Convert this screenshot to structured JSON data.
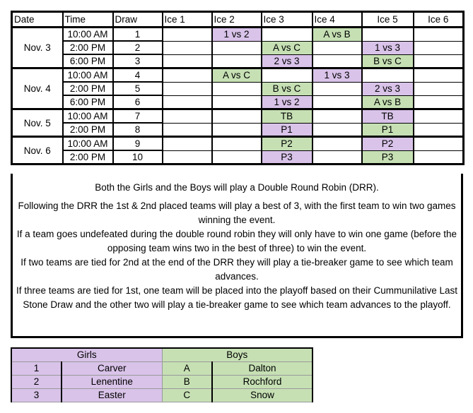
{
  "colors": {
    "girls": "#d9c3e9",
    "boys": "#c6e0b4"
  },
  "schedule": {
    "headers": [
      "Date",
      "Time",
      "Draw",
      "Ice 1",
      "Ice 2",
      "Ice 3",
      "Ice 4",
      "Ice 5",
      "Ice 6"
    ],
    "groups": [
      {
        "date": "Nov. 3",
        "rows": [
          {
            "time": "10:00 AM",
            "draw": "1",
            "ice": [
              [
                "",
                ""
              ],
              [
                "1 vs 2",
                "pur"
              ],
              [
                "",
                ""
              ],
              [
                "A vs B",
                "grn"
              ],
              [
                "",
                ""
              ],
              [
                "",
                ""
              ]
            ]
          },
          {
            "time": "2:00 PM",
            "draw": "2",
            "ice": [
              [
                "",
                ""
              ],
              [
                "",
                ""
              ],
              [
                "A vs C",
                "grn"
              ],
              [
                "",
                ""
              ],
              [
                "1 vs 3",
                "pur"
              ],
              [
                "",
                ""
              ]
            ]
          },
          {
            "time": "6:00 PM",
            "draw": "3",
            "ice": [
              [
                "",
                ""
              ],
              [
                "",
                ""
              ],
              [
                "2 vs 3",
                "pur"
              ],
              [
                "",
                ""
              ],
              [
                "B vs C",
                "grn"
              ],
              [
                "",
                ""
              ]
            ]
          }
        ]
      },
      {
        "date": "Nov. 4",
        "rows": [
          {
            "time": "10:00 AM",
            "draw": "4",
            "ice": [
              [
                "",
                ""
              ],
              [
                "A vs C",
                "grn"
              ],
              [
                "",
                ""
              ],
              [
                "1 vs  3",
                "pur"
              ],
              [
                "",
                ""
              ],
              [
                "",
                ""
              ]
            ]
          },
          {
            "time": "2:00 PM",
            "draw": "5",
            "ice": [
              [
                "",
                ""
              ],
              [
                "",
                ""
              ],
              [
                "B vs C",
                "grn"
              ],
              [
                "",
                ""
              ],
              [
                "2 vs 3",
                "pur"
              ],
              [
                "",
                ""
              ]
            ]
          },
          {
            "time": "6:00 PM",
            "draw": "6",
            "ice": [
              [
                "",
                ""
              ],
              [
                "",
                ""
              ],
              [
                "1 vs 2",
                "pur"
              ],
              [
                "",
                ""
              ],
              [
                "A vs B",
                "grn"
              ],
              [
                "",
                ""
              ]
            ]
          }
        ]
      },
      {
        "date": "Nov. 5",
        "rows": [
          {
            "time": "10:00 AM",
            "draw": "7",
            "ice": [
              [
                "",
                ""
              ],
              [
                "",
                ""
              ],
              [
                "TB",
                "grn"
              ],
              [
                "",
                ""
              ],
              [
                "TB",
                "pur"
              ],
              [
                "",
                ""
              ]
            ]
          },
          {
            "time": "2:00 PM",
            "draw": "8",
            "ice": [
              [
                "",
                ""
              ],
              [
                "",
                ""
              ],
              [
                "P1",
                "pur"
              ],
              [
                "",
                ""
              ],
              [
                "P1",
                "grn"
              ],
              [
                "",
                ""
              ]
            ]
          }
        ]
      },
      {
        "date": "Nov. 6",
        "rows": [
          {
            "time": "10:00 AM",
            "draw": "9",
            "ice": [
              [
                "",
                ""
              ],
              [
                "",
                ""
              ],
              [
                "P2",
                "grn"
              ],
              [
                "",
                ""
              ],
              [
                "P2",
                "pur"
              ],
              [
                "",
                ""
              ]
            ]
          },
          {
            "time": "2:00 PM",
            "draw": "10",
            "ice": [
              [
                "",
                ""
              ],
              [
                "",
                ""
              ],
              [
                "P3",
                "pur"
              ],
              [
                "",
                ""
              ],
              [
                "P3",
                "grn"
              ],
              [
                "",
                ""
              ]
            ]
          }
        ]
      }
    ]
  },
  "notes": [
    "Both the Girls and the Boys will play a Double Round Robin (DRR).",
    "Following the DRR the 1st & 2nd placed teams will play a best of 3, with the first team to win two games winning the event.",
    "If a team goes undefeated during the double round robin they will only have to win one game (before the opposing team wins two in the best of three) to win the event.",
    "If two teams are tied for 2nd at the end of the DRR they will play a tie-breaker game to see which team advances.",
    "If three teams are tied for 1st, one team will be placed into the playoff based on their Cummunilative Last Stone Draw and the other two will play a tie-breaker game to see which team advances to the playoff."
  ],
  "teams": {
    "girls_label": "Girls",
    "boys_label": "Boys",
    "rows": [
      {
        "g_seed": "1",
        "g_name": "Carver",
        "b_seed": "A",
        "b_name": "Dalton"
      },
      {
        "g_seed": "2",
        "g_name": "Lenentine",
        "b_seed": "B",
        "b_name": "Rochford"
      },
      {
        "g_seed": "3",
        "g_name": "Easter",
        "b_seed": "C",
        "b_name": "Snow"
      }
    ]
  }
}
